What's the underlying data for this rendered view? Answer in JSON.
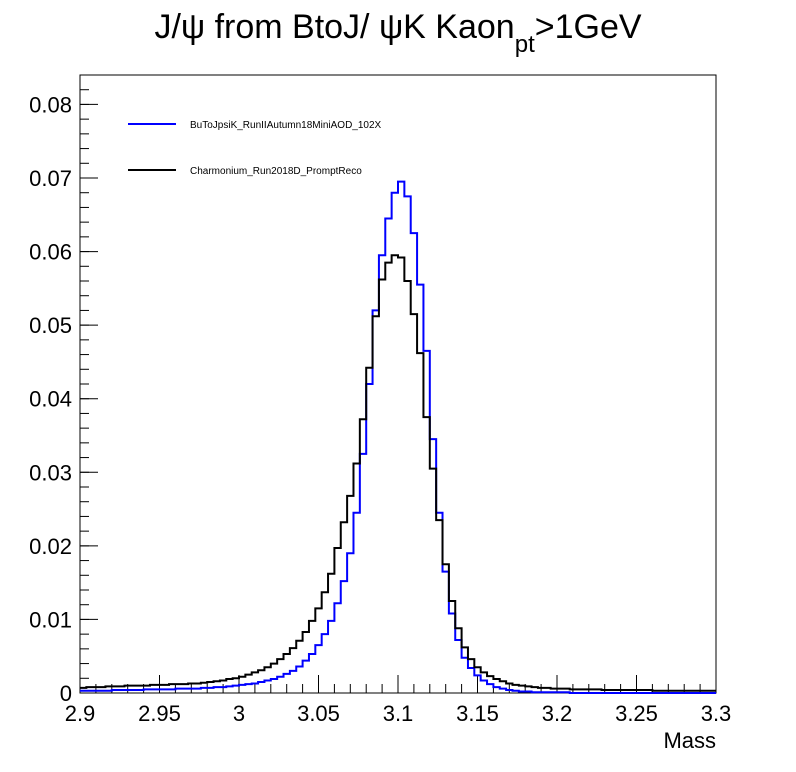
{
  "chart_data": {
    "type": "line",
    "title": {
      "main": "J/ψ from BtoJ/ ψK Kaon",
      "subscript": "pt",
      "suffix": ">1GeV"
    },
    "xlabel": "Mass",
    "ylabel": "",
    "xlim": [
      2.9,
      3.3
    ],
    "ylim": [
      0,
      0.084
    ],
    "x_ticks": [
      "2.9",
      "2.95",
      "3",
      "3.05",
      "3.1",
      "3.15",
      "3.2",
      "3.25",
      "3.3"
    ],
    "y_ticks": [
      "0",
      "0.01",
      "0.02",
      "0.03",
      "0.04",
      "0.05",
      "0.06",
      "0.07",
      "0.08"
    ],
    "x_tick_values": [
      2.9,
      2.95,
      3.0,
      3.05,
      3.1,
      3.15,
      3.2,
      3.25,
      3.3
    ],
    "y_tick_values": [
      0,
      0.01,
      0.02,
      0.03,
      0.04,
      0.05,
      0.06,
      0.07,
      0.08
    ],
    "grid": false,
    "legend_position": "top-left",
    "bin_edges_range": [
      2.9,
      3.3
    ],
    "bin_count": 100,
    "series": [
      {
        "name": "BuToJpsiK_RunIIAutumn18MiniAOD_102X",
        "color": "#0000ff",
        "values": [
          0.0003,
          0.0003,
          0.0003,
          0.0003,
          0.0003,
          0.0004,
          0.0004,
          0.0004,
          0.0004,
          0.0004,
          0.0005,
          0.0005,
          0.0005,
          0.0005,
          0.0005,
          0.0006,
          0.0006,
          0.0006,
          0.0006,
          0.0007,
          0.0007,
          0.0008,
          0.0008,
          0.0009,
          0.001,
          0.0011,
          0.0012,
          0.0013,
          0.0015,
          0.0017,
          0.0019,
          0.0022,
          0.0026,
          0.003,
          0.0036,
          0.0044,
          0.0053,
          0.0065,
          0.008,
          0.0098,
          0.0122,
          0.0152,
          0.019,
          0.0245,
          0.0325,
          0.042,
          0.052,
          0.0595,
          0.0645,
          0.068,
          0.0695,
          0.0675,
          0.0625,
          0.0555,
          0.0465,
          0.0345,
          0.0245,
          0.0165,
          0.0108,
          0.0072,
          0.0048,
          0.0034,
          0.0024,
          0.0017,
          0.0012,
          0.0008,
          0.0006,
          0.0004,
          0.0003,
          0.0002,
          0.0002,
          0.0001,
          0.0001,
          0.0001,
          0.0001,
          0.0001,
          0.0001,
          0.0,
          0.0,
          0.0,
          0.0,
          0.0,
          0.0,
          0.0,
          0.0,
          0.0,
          0.0,
          0.0,
          0.0,
          0.0,
          0.0,
          0.0,
          0.0,
          0.0,
          0.0,
          0.0,
          0.0,
          0.0,
          0.0,
          0.0
        ]
      },
      {
        "name": "Charmonium_Run2018D_PromptReco",
        "color": "#000000",
        "values": [
          0.0007,
          0.0008,
          0.0008,
          0.0008,
          0.0009,
          0.0009,
          0.0009,
          0.001,
          0.001,
          0.001,
          0.001,
          0.0011,
          0.0011,
          0.0011,
          0.0012,
          0.0012,
          0.0012,
          0.0013,
          0.0013,
          0.0014,
          0.0015,
          0.0016,
          0.0017,
          0.0019,
          0.002,
          0.0022,
          0.0025,
          0.0028,
          0.0031,
          0.0035,
          0.004,
          0.0046,
          0.0053,
          0.0061,
          0.0071,
          0.0083,
          0.0098,
          0.0115,
          0.0137,
          0.0162,
          0.0197,
          0.0232,
          0.0268,
          0.0312,
          0.0372,
          0.0442,
          0.0512,
          0.0562,
          0.0585,
          0.0595,
          0.0592,
          0.056,
          0.0515,
          0.0462,
          0.0375,
          0.0305,
          0.0235,
          0.0175,
          0.0125,
          0.0088,
          0.0062,
          0.0046,
          0.0035,
          0.0028,
          0.0023,
          0.0019,
          0.0016,
          0.0013,
          0.0011,
          0.001,
          0.0009,
          0.0008,
          0.0007,
          0.0007,
          0.0006,
          0.0006,
          0.0006,
          0.0005,
          0.0005,
          0.0005,
          0.0005,
          0.0005,
          0.0004,
          0.0004,
          0.0004,
          0.0004,
          0.0004,
          0.0004,
          0.0004,
          0.0004,
          0.0003,
          0.0003,
          0.0003,
          0.0003,
          0.0003,
          0.0003,
          0.0003,
          0.0003,
          0.0003,
          0.0003
        ]
      }
    ]
  }
}
